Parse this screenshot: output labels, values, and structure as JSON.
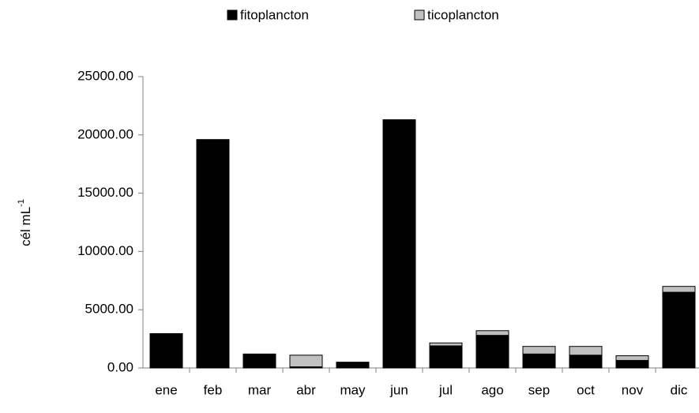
{
  "chart_data": {
    "type": "bar",
    "stacked": true,
    "ylabel": "cél mL",
    "ylabel_sup": "-1",
    "categories": [
      "ene",
      "feb",
      "mar",
      "abr",
      "may",
      "jun",
      "jul",
      "ago",
      "sep",
      "oct",
      "nov",
      "dic"
    ],
    "series": [
      {
        "name": "fitoplancton",
        "color": "#000000",
        "values": [
          2950,
          19600,
          1200,
          100,
          500,
          21300,
          1900,
          2800,
          1200,
          1100,
          650,
          6500
        ]
      },
      {
        "name": "ticoplancton",
        "color": "#c0c0c0",
        "values": [
          0,
          0,
          0,
          1000,
          0,
          0,
          250,
          400,
          650,
          750,
          400,
          500
        ]
      }
    ],
    "ylim": [
      0,
      25000
    ],
    "yticks": [
      {
        "value": 0,
        "label": "0.00"
      },
      {
        "value": 5000,
        "label": "5000.00"
      },
      {
        "value": 10000,
        "label": "10000.00"
      },
      {
        "value": 15000,
        "label": "15000.00"
      },
      {
        "value": 20000,
        "label": "20000.00"
      },
      {
        "value": 25000,
        "label": "25000.00"
      }
    ],
    "legend": "top",
    "grid": false
  }
}
